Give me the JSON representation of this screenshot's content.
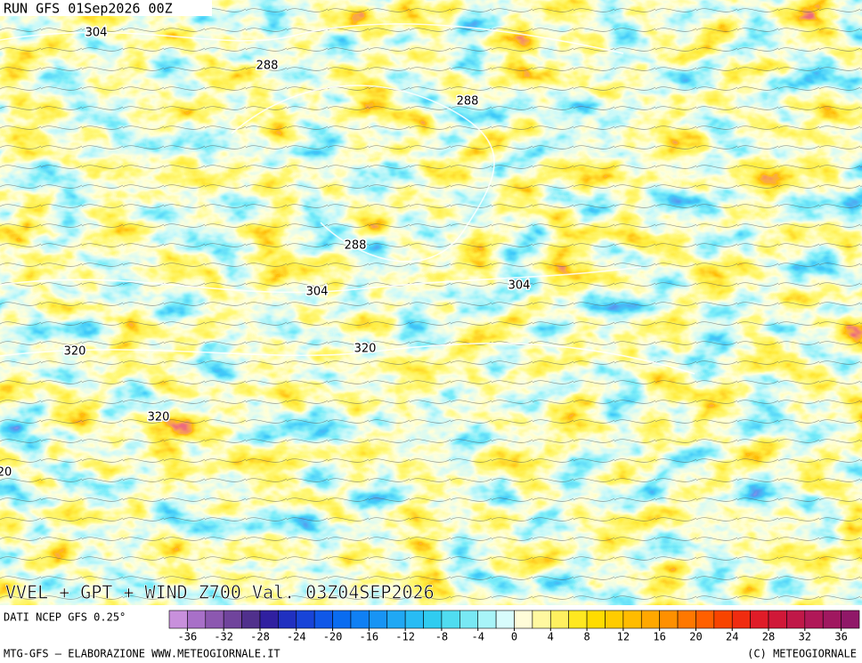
{
  "header": {
    "run": "RUN GFS 01Sep2026 00Z"
  },
  "map": {
    "contour_labels": [
      304,
      288,
      288,
      288,
      304,
      304,
      320,
      320,
      320,
      20
    ],
    "title": "VVEL + GPT + WIND Z700 Val. 03Z04SEP2026"
  },
  "legend": {
    "source": "DATI NCEP GFS 0.25°",
    "lim": [
      -38,
      38
    ],
    "ticks": [
      -36,
      -32,
      -28,
      -24,
      -20,
      -16,
      -12,
      -8,
      -4,
      0,
      4,
      8,
      12,
      16,
      20,
      24,
      28,
      32,
      36
    ],
    "colors": [
      "#c890dc",
      "#a870c8",
      "#8c58b0",
      "#70449c",
      "#50308c",
      "#3020a0",
      "#2030c0",
      "#1844d8",
      "#1058e8",
      "#0a6cf0",
      "#1080f4",
      "#1894f4",
      "#20a8f4",
      "#28bcf4",
      "#30ccf0",
      "#50dcf0",
      "#78e8f4",
      "#a8f4f8",
      "#d8fcfc",
      "#fffcd8",
      "#fff8a0",
      "#fff060",
      "#ffe820",
      "#ffdc00",
      "#ffcc00",
      "#ffbc00",
      "#ffa800",
      "#ff9000",
      "#ff7800",
      "#ff6000",
      "#f84400",
      "#f02c10",
      "#e01c28",
      "#d01838",
      "#c01848",
      "#b01858",
      "#a01860",
      "#901868"
    ]
  },
  "footer": {
    "left": "MTG-GFS — ELABORAZIONE WWW.METEOGIORNALE.IT",
    "right": "(C) METEOGIORNALE"
  }
}
